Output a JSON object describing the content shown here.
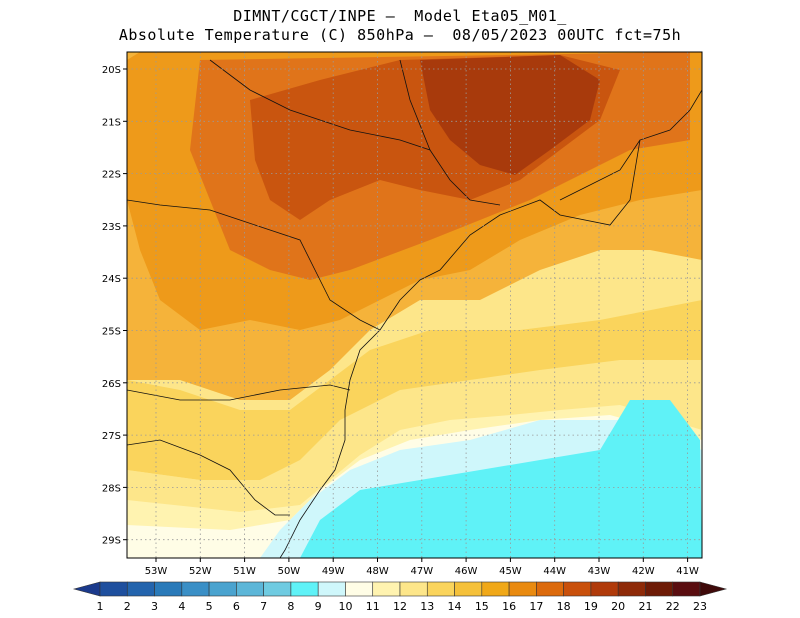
{
  "header": {
    "title_line1": "DIMNT/CGCT/INPE –  Model Eta05_M01_",
    "title_line2": "Absolute Temperature (C) 850hPa –  08/05/2023 00UTC fct=75h"
  },
  "axes": {
    "lat_labels": [
      "20S",
      "21S",
      "22S",
      "23S",
      "24S",
      "25S",
      "26S",
      "27S",
      "28S",
      "29S"
    ],
    "lon_labels": [
      "53W",
      "52W",
      "51W",
      "50W",
      "49W",
      "48W",
      "47W",
      "46W",
      "45W",
      "44W",
      "43W",
      "42W",
      "41W"
    ]
  },
  "colorbar": {
    "labels": [
      "1",
      "2",
      "3",
      "4",
      "5",
      "6",
      "7",
      "8",
      "9",
      "10",
      "11",
      "12",
      "13",
      "14",
      "15",
      "16",
      "17",
      "18",
      "19",
      "20",
      "21",
      "22",
      "23"
    ],
    "colors": [
      "#1b3a8c",
      "#1e4f9e",
      "#2364ad",
      "#2a7ab9",
      "#3a8fc6",
      "#4aa3cf",
      "#5cb6d8",
      "#6fcbe1",
      "#5ff2f7",
      "#cff7fb",
      "#fffde6",
      "#fff3b0",
      "#fde68a",
      "#fad45c",
      "#f5c13a",
      "#f0a818",
      "#e98a10",
      "#dc6a0c",
      "#c9500b",
      "#b03a0a",
      "#8e2a08",
      "#6e1b06",
      "#5a0d10",
      "#3f0a0a"
    ]
  },
  "map_data": {
    "variable": "Absolute Temperature (C) 850hPa",
    "extent_lon": [
      -53.6,
      -40.4
    ],
    "extent_lat": [
      -29.4,
      -19.9
    ],
    "colorbar_units": "C"
  }
}
